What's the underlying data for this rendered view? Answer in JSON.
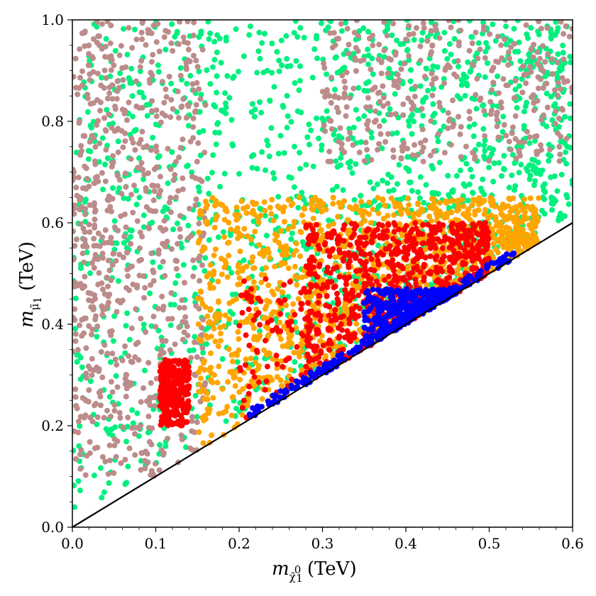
{
  "chart_data": {
    "type": "scatter",
    "xlabel": "m",
    "xlabel_sub": "χ̃",
    "xlabel_sup": "0",
    "xlabel_subsub": "1",
    "xlabel_unit": "(TeV)",
    "ylabel": "m",
    "ylabel_sub": "μ̃",
    "ylabel_subsub": "1",
    "ylabel_unit": "(TeV)",
    "xlim": [
      0.0,
      0.6
    ],
    "ylim": [
      0.0,
      1.0
    ],
    "xticks": [
      "0.0",
      "0.1",
      "0.2",
      "0.3",
      "0.4",
      "0.5",
      "0.6"
    ],
    "yticks": [
      "0.0",
      "0.2",
      "0.4",
      "0.6",
      "0.8",
      "1.0"
    ],
    "grid": false,
    "reference_line": {
      "x": [
        0.0,
        0.6
      ],
      "y": [
        0.0,
        0.6
      ],
      "color": "#000000"
    },
    "series": [
      {
        "color": "#00f07f",
        "regions": [
          {
            "x": [
              0.0,
              0.6
            ],
            "y_low_offset": 0.02,
            "y_high": 1.0,
            "n": 1400
          }
        ]
      },
      {
        "color": "#bc8c8a",
        "regions": [
          {
            "x": [
              0.0,
              0.16
            ],
            "y_low": 0.1,
            "y_high": 1.0,
            "n": 650
          },
          {
            "x": [
              0.3,
              0.6
            ],
            "y_low": 0.72,
            "y_high": 1.0,
            "n": 350
          },
          {
            "x": [
              0.0,
              0.05
            ],
            "y_low": 0.4,
            "y_high": 0.7,
            "n": 60
          }
        ]
      },
      {
        "color": "#ffa500",
        "regions": [
          {
            "x": [
              0.15,
              0.56
            ],
            "y_low_offset": 0.0,
            "y_high": 0.65,
            "n": 1300
          }
        ]
      },
      {
        "color": "#ff0000",
        "regions": [
          {
            "x": [
              0.105,
              0.14
            ],
            "y_low": 0.2,
            "y_high": 0.33,
            "n": 260
          },
          {
            "x": [
              0.28,
              0.5
            ],
            "y_low_offset": 0.0,
            "y_high": 0.6,
            "n": 750
          },
          {
            "x": [
              0.2,
              0.3
            ],
            "y_low_offset": 0.0,
            "y_high": 0.5,
            "n": 90
          }
        ]
      },
      {
        "color": "#0000ff",
        "regions": [
          {
            "x": [
              0.35,
              0.46
            ],
            "y_low_offset": 0.0,
            "y_high": 0.47,
            "n": 320
          },
          {
            "band": true,
            "x": [
              0.21,
              0.53
            ],
            "offset": 0.02,
            "n": 200
          }
        ]
      }
    ]
  }
}
